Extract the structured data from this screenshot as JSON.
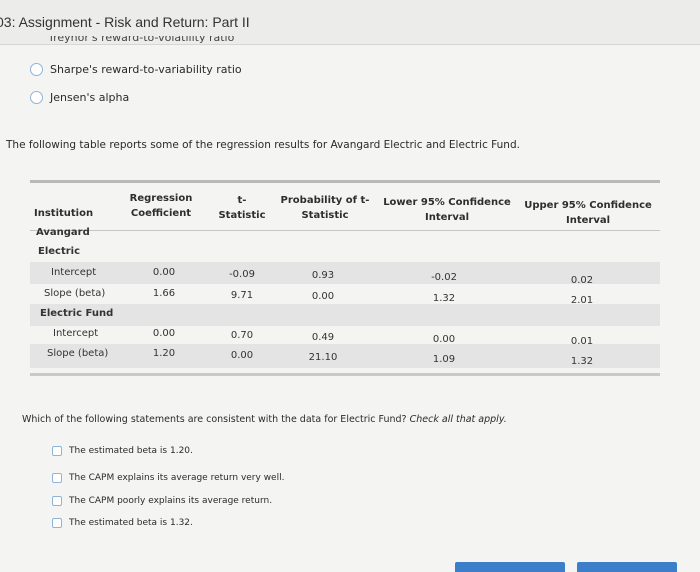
{
  "header": {
    "title": "03: Assignment - Risk and Return: Part II",
    "cutoff_option": "Treynor's reward-to-volatility ratio"
  },
  "options": [
    {
      "label": "Sharpe's reward-to-variability ratio"
    },
    {
      "label": "Jensen's alpha"
    }
  ],
  "intro": "The following table reports some of the regression results for Avangard Electric and Electric Fund.",
  "table": {
    "headers": {
      "institution": "Institution",
      "coef_1": "Regression",
      "coef_2": "Coefficient",
      "t_1": "t-",
      "t_2": "Statistic",
      "p_1": "Probability of t-",
      "p_2": "Statistic",
      "low_1": "Lower 95% Confidence",
      "low_2": "Interval",
      "up_1": "Upper 95% Confidence",
      "up_2": "Interval"
    },
    "group1": {
      "line1": "Avangard",
      "line2": "Electric"
    },
    "group2": "Electric Fund",
    "rows": [
      {
        "label": "Intercept",
        "coef": "0.00",
        "t": "-0.09",
        "p": "0.93",
        "low": "-0.02",
        "up": "0.02"
      },
      {
        "label": "Slope (beta)",
        "coef": "1.66",
        "t": "9.71",
        "p": "0.00",
        "low": "1.32",
        "up": "2.01"
      },
      {
        "label": "Intercept",
        "coef": "0.00",
        "t": "0.70",
        "p": "0.49",
        "low": "0.00",
        "up": "0.01"
      },
      {
        "label": "Slope (beta)",
        "coef": "1.20",
        "t": "0.00",
        "p": "21.10",
        "low": "1.09",
        "up": "1.32"
      }
    ]
  },
  "question": {
    "text": "Which of the following statements are consistent with the data for Electric Fund?",
    "hint": "Check all that apply."
  },
  "choices": [
    {
      "label": "The estimated beta is 1.20."
    },
    {
      "label": "The CAPM explains its average return very well."
    },
    {
      "label": "The CAPM poorly explains its average return."
    },
    {
      "label": "The estimated beta is 1.32."
    }
  ],
  "colors": {
    "accent": "#3c7ec9",
    "band": "#e4e4e4"
  }
}
